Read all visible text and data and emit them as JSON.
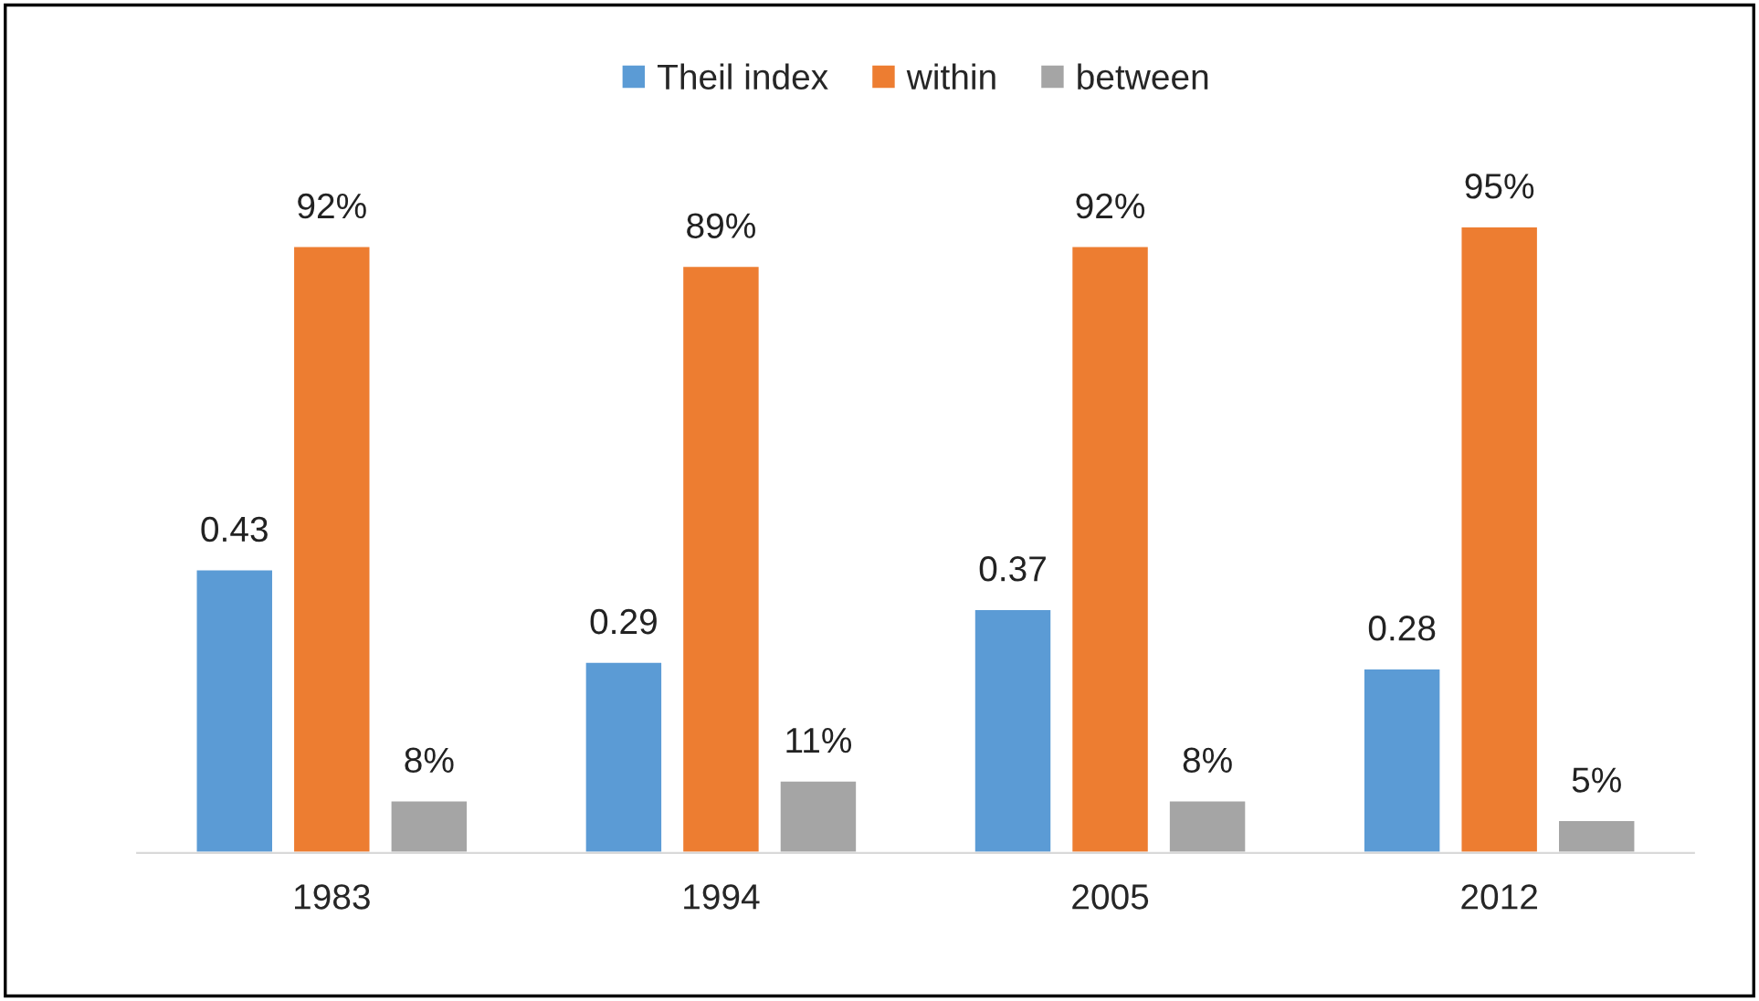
{
  "chart_data": {
    "type": "bar",
    "categories": [
      "1983",
      "1994",
      "2005",
      "2012"
    ],
    "series": [
      {
        "name": "Theil index",
        "color": "#5b9bd5",
        "values": [
          0.43,
          0.29,
          0.37,
          0.28
        ],
        "value_labels": [
          "0.43",
          "0.29",
          "0.37",
          "0.28"
        ]
      },
      {
        "name": "within",
        "color": "#ed7d31",
        "values": [
          0.92,
          0.89,
          0.92,
          0.95
        ],
        "value_labels": [
          "92%",
          "89%",
          "92%",
          "95%"
        ]
      },
      {
        "name": "between",
        "color": "#a5a5a5",
        "values": [
          0.08,
          0.11,
          0.08,
          0.05
        ],
        "value_labels": [
          "8%",
          "11%",
          "8%",
          "5%"
        ]
      }
    ],
    "legend": "top",
    "grid": false
  }
}
